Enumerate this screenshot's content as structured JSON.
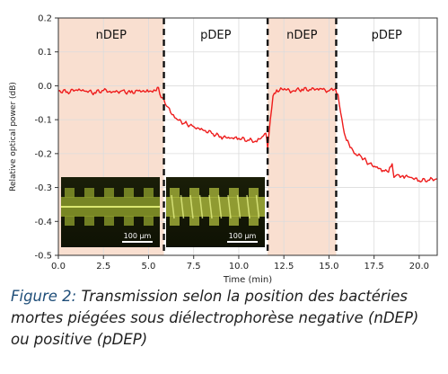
{
  "chart_data": {
    "type": "line",
    "xlabel": "Time (min)",
    "ylabel": "Relative optical power (dB)",
    "xlim": [
      0,
      21
    ],
    "ylim": [
      -0.5,
      0.2
    ],
    "xticks": [
      "0.0",
      "2.5",
      "5.0",
      "7.5",
      "10.0",
      "12.5",
      "15.0",
      "17.5",
      "20.0"
    ],
    "yticks": [
      "0.2",
      "0.1",
      "0.0",
      "-0.1",
      "-0.2",
      "-0.3",
      "-0.4",
      "-0.5"
    ],
    "grid": true,
    "line_color": "#ee1c1c",
    "region_color": "#f9dfd0",
    "regions": [
      {
        "label": "nDEP",
        "x0": 0,
        "x1": 5.85,
        "shaded": true
      },
      {
        "label": "pDEP",
        "x0": 5.85,
        "x1": 11.6,
        "shaded": false
      },
      {
        "label": "nDEP",
        "x0": 11.6,
        "x1": 15.4,
        "shaded": true
      },
      {
        "label": "pDEP",
        "x0": 15.4,
        "x1": 21,
        "shaded": false
      }
    ],
    "switch_lines": [
      5.85,
      11.6,
      15.4
    ],
    "series": [
      {
        "x": [
          0,
          0.5,
          1,
          1.5,
          2,
          2.5,
          3,
          3.5,
          4,
          4.5,
          5,
          5.3,
          5.55,
          5.7,
          5.85,
          6.0,
          6.3,
          6.6,
          7.0,
          7.5,
          8.0,
          8.5,
          9.0,
          9.5,
          10.0,
          10.5,
          11.0,
          11.3,
          11.5,
          11.6,
          11.75,
          11.9,
          12.1,
          12.4,
          13,
          13.5,
          14,
          14.5,
          15,
          15.3,
          15.5,
          15.65,
          15.85,
          16.1,
          16.4,
          16.8,
          17.2,
          17.6,
          18.0,
          18.3,
          18.5,
          18.6,
          18.8,
          19.1,
          19.5,
          20.0,
          20.5,
          21.0
        ],
        "y": [
          -0.015,
          -0.018,
          -0.012,
          -0.016,
          -0.02,
          -0.014,
          -0.018,
          -0.015,
          -0.02,
          -0.013,
          -0.018,
          -0.012,
          -0.005,
          -0.035,
          -0.04,
          -0.06,
          -0.085,
          -0.1,
          -0.11,
          -0.12,
          -0.13,
          -0.14,
          -0.15,
          -0.155,
          -0.155,
          -0.16,
          -0.165,
          -0.15,
          -0.14,
          -0.185,
          -0.1,
          -0.03,
          -0.012,
          -0.01,
          -0.015,
          -0.01,
          -0.012,
          -0.008,
          -0.015,
          -0.01,
          -0.025,
          -0.08,
          -0.14,
          -0.17,
          -0.2,
          -0.21,
          -0.23,
          -0.24,
          -0.25,
          -0.255,
          -0.23,
          -0.27,
          -0.262,
          -0.265,
          -0.27,
          -0.28,
          -0.278,
          -0.275
        ]
      }
    ],
    "insets": [
      {
        "scale_label": "100 µm"
      },
      {
        "scale_label": "100 µm"
      }
    ]
  },
  "caption": {
    "lead": "Figure 2:",
    "text": " Transmission selon la position des bactéries mortes piégées sous diélectrophorèse negative (nDEP) ou positive (pDEP)"
  }
}
